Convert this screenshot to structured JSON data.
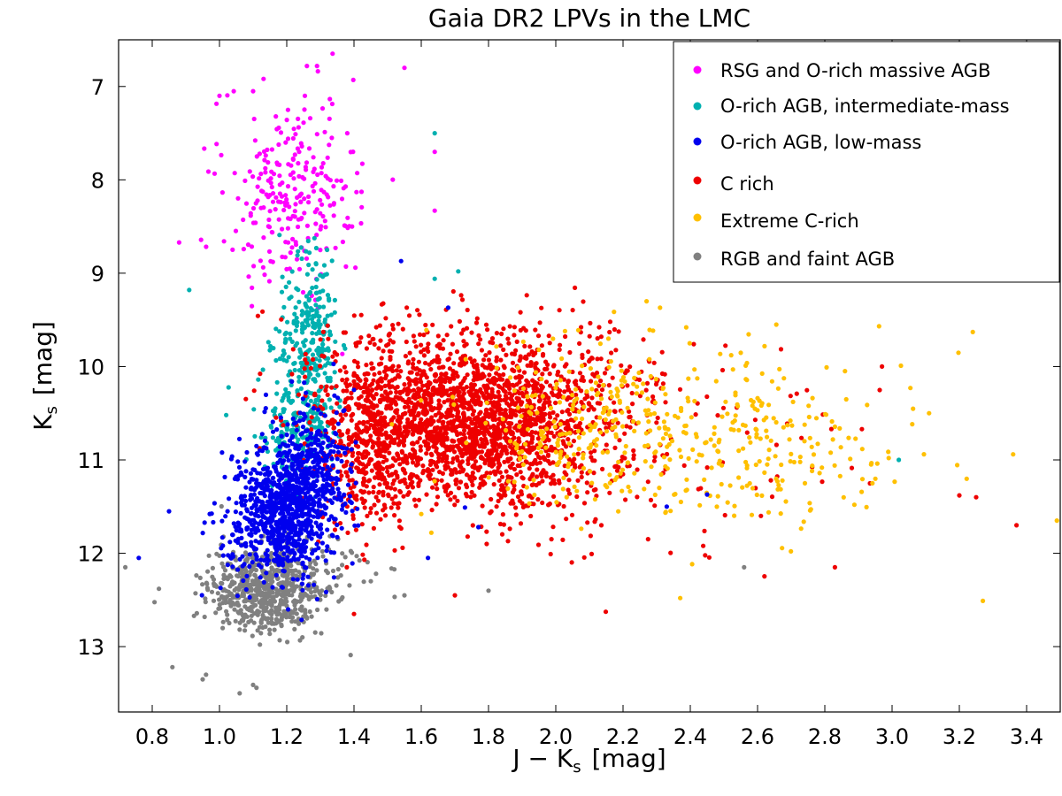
{
  "chart_data": {
    "type": "scatter",
    "title": "Gaia DR2 LPVs in the LMC",
    "xlabel": "J − K",
    "xlabel_sub": "s",
    "xlabel_unit": "[mag]",
    "ylabel": "K",
    "ylabel_sub": "s",
    "ylabel_unit": "[mag]",
    "xlim": [
      0.7,
      3.5
    ],
    "ylim": [
      13.7,
      6.5
    ],
    "y_inverted": true,
    "xticks": [
      0.8,
      1.0,
      1.2,
      1.4,
      1.6,
      1.8,
      2.0,
      2.2,
      2.4,
      2.6,
      2.8,
      3.0,
      3.2,
      3.4
    ],
    "xtick_labels": [
      "0.8",
      "1.0",
      "1.2",
      "1.4",
      "1.6",
      "1.8",
      "2.0",
      "2.2",
      "2.4",
      "2.6",
      "2.8",
      "3.0",
      "3.2",
      "3.4"
    ],
    "yticks": [
      7,
      8,
      9,
      10,
      11,
      12,
      13
    ],
    "ytick_labels": [
      "7",
      "8",
      "9",
      "10",
      "11",
      "12",
      "13"
    ],
    "legend_placement": "top-right",
    "series": [
      {
        "name": "RSG and O-rich massive AGB",
        "color": "#ff00ff",
        "clusters": [
          {
            "cx": 1.2,
            "cy": 8.15,
            "sx": 0.1,
            "sy": 0.5,
            "n": 230,
            "rot": 0
          },
          {
            "cx": 1.33,
            "cy": 8.0,
            "sx": 0.1,
            "sy": 0.7,
            "n": 30,
            "rot": 0
          }
        ],
        "points": [
          [
            1.1,
            7.05
          ],
          [
            1.26,
            6.78
          ],
          [
            1.29,
            6.78
          ],
          [
            1.55,
            6.8
          ],
          [
            1.0,
            7.1
          ],
          [
            0.88,
            8.67
          ],
          [
            1.64,
            8.33
          ],
          [
            1.64,
            7.7
          ],
          [
            1.38,
            7.5
          ]
        ]
      },
      {
        "name": "O-rich AGB, intermediate-mass",
        "color": "#00b0b0",
        "clusters": [
          {
            "cx": 1.27,
            "cy": 9.9,
            "sx": 0.045,
            "sy": 0.55,
            "n": 330,
            "rot": 0
          },
          {
            "cx": 1.22,
            "cy": 10.75,
            "sx": 0.06,
            "sy": 0.25,
            "n": 120,
            "rot": 0
          }
        ],
        "points": [
          [
            0.91,
            9.18
          ],
          [
            1.64,
            7.5
          ],
          [
            1.64,
            9.06
          ],
          [
            1.71,
            8.98
          ],
          [
            1.32,
            8.75
          ],
          [
            1.02,
            10.52
          ],
          [
            3.02,
            11.0
          ]
        ]
      },
      {
        "name": "O-rich AGB, low-mass",
        "color": "#0000ee",
        "clusters": [
          {
            "cx": 1.19,
            "cy": 11.55,
            "sx": 0.075,
            "sy": 0.36,
            "n": 950,
            "rot": -0.5
          },
          {
            "cx": 1.28,
            "cy": 11.0,
            "sx": 0.06,
            "sy": 0.3,
            "n": 200,
            "rot": 0
          }
        ],
        "points": [
          [
            0.76,
            12.05
          ],
          [
            0.85,
            11.55
          ],
          [
            1.68,
            9.37
          ],
          [
            1.54,
            8.87
          ],
          [
            1.77,
            11.72
          ],
          [
            1.73,
            11.51
          ],
          [
            2.45,
            11.37
          ],
          [
            2.33,
            11.5
          ],
          [
            1.62,
            12.05
          ],
          [
            1.4,
            10.25
          ]
        ]
      },
      {
        "name": "C rich",
        "color": "#ee0000",
        "clusters": [
          {
            "cx": 1.72,
            "cy": 10.6,
            "sx": 0.2,
            "sy": 0.42,
            "n": 1700,
            "rot": 0.7
          },
          {
            "cx": 1.45,
            "cy": 10.95,
            "sx": 0.08,
            "sy": 0.4,
            "n": 400,
            "rot": 0
          },
          {
            "cx": 1.95,
            "cy": 10.3,
            "sx": 0.18,
            "sy": 0.4,
            "n": 500,
            "rot": 0
          },
          {
            "cx": 2.35,
            "cy": 11.0,
            "sx": 0.35,
            "sy": 0.6,
            "n": 70,
            "rot": 0
          }
        ],
        "points": [
          [
            3.25,
            11.4
          ],
          [
            3.37,
            11.7
          ],
          [
            2.83,
            12.15
          ],
          [
            2.61,
            11.6
          ],
          [
            1.4,
            12.65
          ],
          [
            2.97,
            10.0
          ],
          [
            1.7,
            12.45
          ],
          [
            3.2,
            11.38
          ]
        ]
      },
      {
        "name": "Extreme C-rich",
        "color": "#ffc000",
        "clusters": [
          {
            "cx": 2.45,
            "cy": 10.75,
            "sx": 0.32,
            "sy": 0.45,
            "n": 360,
            "rot": 0.3
          },
          {
            "cx": 2.05,
            "cy": 10.7,
            "sx": 0.12,
            "sy": 0.4,
            "n": 120,
            "rot": 0
          }
        ],
        "points": [
          [
            3.49,
            11.65
          ],
          [
            3.24,
            9.63
          ],
          [
            3.27,
            12.51
          ],
          [
            2.37,
            12.48
          ],
          [
            2.27,
            9.3
          ],
          [
            2.31,
            9.37
          ],
          [
            3.36,
            10.94
          ],
          [
            3.11,
            10.5
          ],
          [
            2.99,
            10.98
          ],
          [
            1.63,
            11.78
          ],
          [
            1.6,
            11.58
          ]
        ]
      },
      {
        "name": "RGB and faint AGB",
        "color": "#808080",
        "clusters": [
          {
            "cx": 1.13,
            "cy": 12.42,
            "sx": 0.08,
            "sy": 0.22,
            "n": 520,
            "rot": 0
          },
          {
            "cx": 1.22,
            "cy": 12.2,
            "sx": 0.1,
            "sy": 0.2,
            "n": 150,
            "rot": 0
          }
        ],
        "points": [
          [
            0.72,
            12.15
          ],
          [
            0.82,
            12.38
          ],
          [
            0.86,
            13.22
          ],
          [
            0.96,
            13.3
          ],
          [
            0.95,
            13.35
          ],
          [
            1.06,
            13.5
          ],
          [
            1.1,
            13.41
          ],
          [
            1.11,
            13.44
          ],
          [
            1.39,
            13.09
          ],
          [
            1.8,
            12.4
          ],
          [
            2.56,
            12.15
          ],
          [
            1.55,
            12.45
          ],
          [
            1.45,
            12.3
          ]
        ]
      }
    ]
  }
}
